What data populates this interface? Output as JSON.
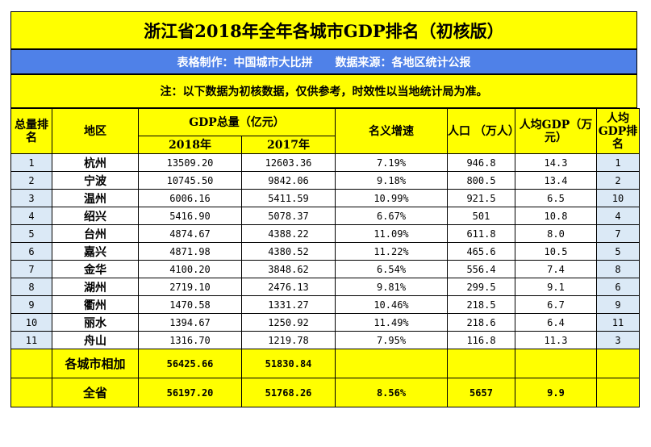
{
  "title": "浙江省2018年全年各城市GDP排名（初核版）",
  "subtitle": {
    "maker": "表格制作：中国城市大比拼",
    "source": "数据来源：各地区统计公报"
  },
  "note": "注：以下数据为初核数据，仅供参考，时效性以当地统计局为准。",
  "headers": {
    "rank": "总量排名",
    "region": "地区",
    "gdp_total": "GDP总量（亿元）",
    "year_2018": "2018年",
    "year_2017": "2017年",
    "growth": "名义增速",
    "population": "人口 （万人）",
    "gdp_per_capita": "人均GDP（万元）",
    "per_capita_rank": "人均GDP排名"
  },
  "rows": [
    {
      "rank": "1",
      "city": "杭州",
      "gdp2018": "13509.20",
      "gdp2017": "12603.36",
      "growth": "7.19%",
      "pop": "946.8",
      "per": "14.3",
      "perrank": "1"
    },
    {
      "rank": "2",
      "city": "宁波",
      "gdp2018": "10745.50",
      "gdp2017": "9842.06",
      "growth": "9.18%",
      "pop": "800.5",
      "per": "13.4",
      "perrank": "2"
    },
    {
      "rank": "3",
      "city": "温州",
      "gdp2018": "6006.16",
      "gdp2017": "5411.59",
      "growth": "10.99%",
      "pop": "921.5",
      "per": "6.5",
      "perrank": "10"
    },
    {
      "rank": "4",
      "city": "绍兴",
      "gdp2018": "5416.90",
      "gdp2017": "5078.37",
      "growth": "6.67%",
      "pop": "501",
      "per": "10.8",
      "perrank": "4"
    },
    {
      "rank": "5",
      "city": "台州",
      "gdp2018": "4874.67",
      "gdp2017": "4388.22",
      "growth": "11.09%",
      "pop": "611.8",
      "per": "8.0",
      "perrank": "7"
    },
    {
      "rank": "6",
      "city": "嘉兴",
      "gdp2018": "4871.98",
      "gdp2017": "4380.52",
      "growth": "11.22%",
      "pop": "465.6",
      "per": "10.5",
      "perrank": "5"
    },
    {
      "rank": "7",
      "city": "金华",
      "gdp2018": "4100.20",
      "gdp2017": "3848.62",
      "growth": "6.54%",
      "pop": "556.4",
      "per": "7.4",
      "perrank": "8"
    },
    {
      "rank": "8",
      "city": "湖州",
      "gdp2018": "2719.10",
      "gdp2017": "2476.13",
      "growth": "9.81%",
      "pop": "299.5",
      "per": "9.1",
      "perrank": "6"
    },
    {
      "rank": "9",
      "city": "衢州",
      "gdp2018": "1470.58",
      "gdp2017": "1331.27",
      "growth": "10.46%",
      "pop": "218.5",
      "per": "6.7",
      "perrank": "9"
    },
    {
      "rank": "10",
      "city": "丽水",
      "gdp2018": "1394.67",
      "gdp2017": "1250.92",
      "growth": "11.49%",
      "pop": "218.6",
      "per": "6.4",
      "perrank": "11"
    },
    {
      "rank": "11",
      "city": "舟山",
      "gdp2018": "1316.70",
      "gdp2017": "1219.78",
      "growth": "7.95%",
      "pop": "116.8",
      "per": "11.3",
      "perrank": "3"
    }
  ],
  "sum_row": {
    "label": "各城市相加",
    "gdp2018": "56425.66",
    "gdp2017": "51830.84"
  },
  "province_row": {
    "label": "全省",
    "gdp2018": "56197.20",
    "gdp2017": "51768.26",
    "growth": "8.56%",
    "pop": "5657",
    "per": "9.9"
  },
  "colors": {
    "yellow": "#ffff00",
    "blue_band": "#4f81e8",
    "light_blue": "#dbe9f6"
  }
}
